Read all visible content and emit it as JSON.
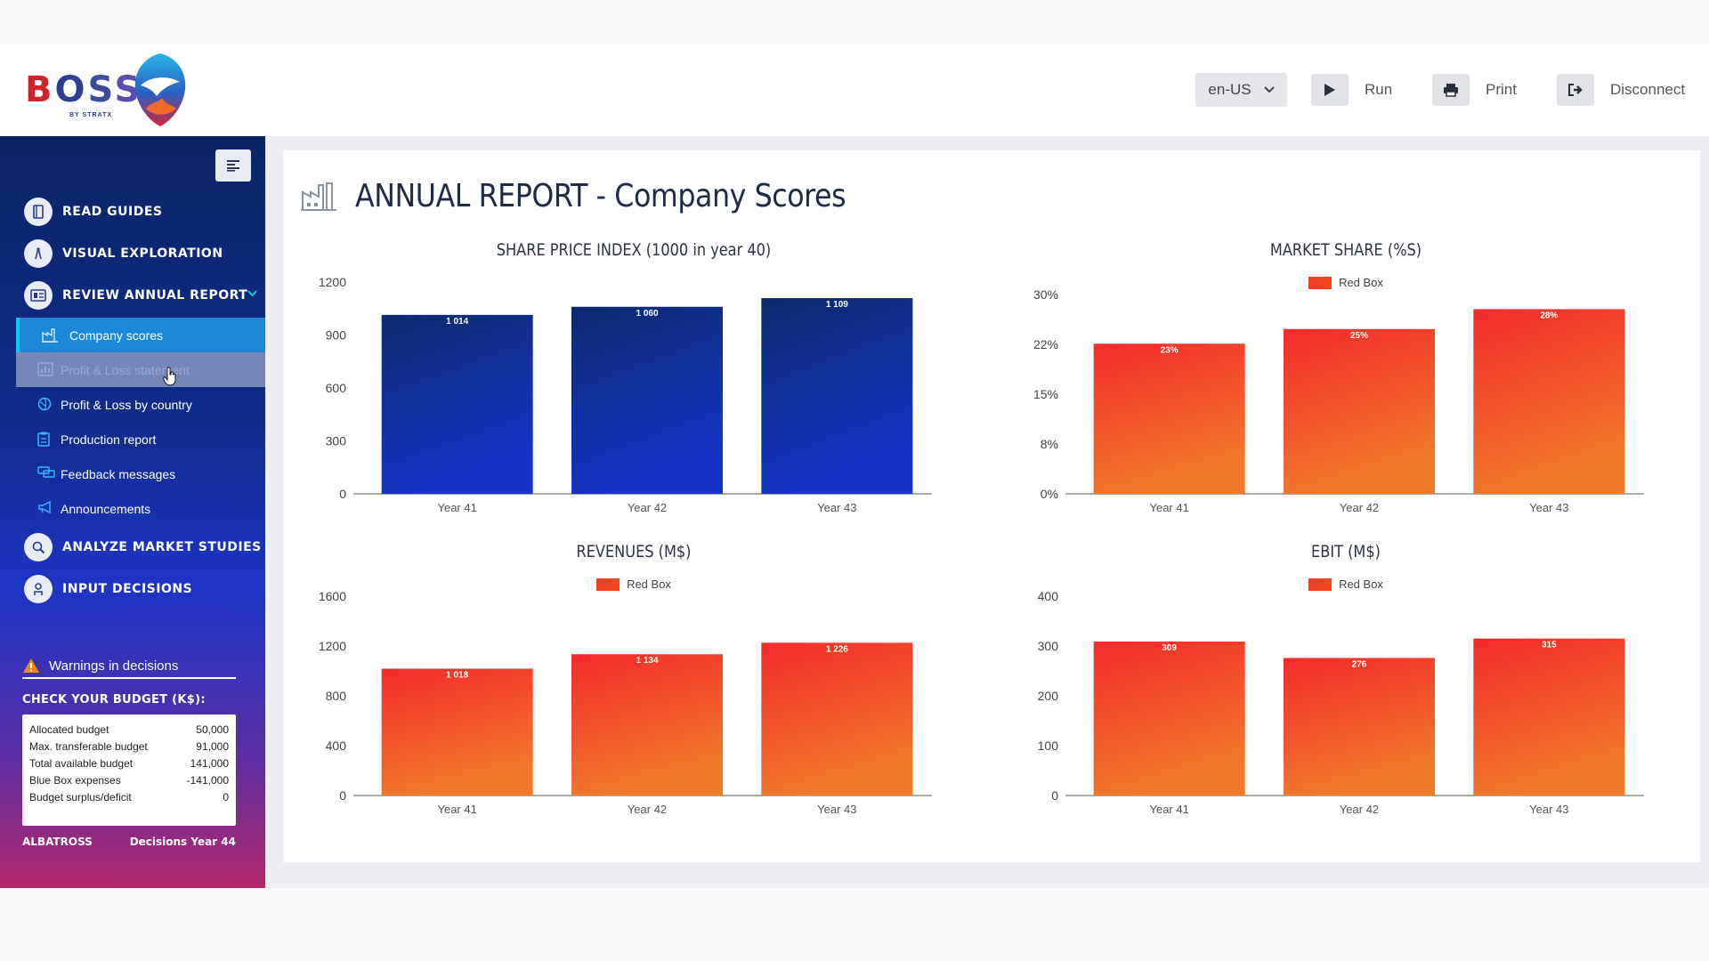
{
  "header": {
    "logo_text": [
      "B",
      "O",
      "S",
      "S"
    ],
    "logo_sub": "BY STRATX",
    "language": "en-US",
    "run_label": "Run",
    "print_label": "Print",
    "disconnect_label": "Disconnect"
  },
  "sidebar": {
    "nav": [
      {
        "label": "READ GUIDES",
        "icon": "book-icon"
      },
      {
        "label": "VISUAL EXPLORATION",
        "icon": "compass-icon"
      },
      {
        "label": "REVIEW ANNUAL REPORT",
        "icon": "report-icon"
      },
      {
        "label": "ANALYZE MARKET STUDIES",
        "icon": "magnifier-icon"
      },
      {
        "label": "INPUT DECISIONS",
        "icon": "decisions-icon"
      }
    ],
    "sub_items": [
      {
        "label": "Company scores",
        "icon": "factory-icon",
        "state": "active"
      },
      {
        "label": "Profit & Loss statement",
        "icon": "chart-icon",
        "state": "hover"
      },
      {
        "label": "Profit & Loss by country",
        "icon": "globe-icon",
        "state": "normal"
      },
      {
        "label": "Production report",
        "icon": "clipboard-icon",
        "state": "normal"
      },
      {
        "label": "Feedback messages",
        "icon": "message-icon",
        "state": "normal"
      },
      {
        "label": "Announcements",
        "icon": "megaphone-icon",
        "state": "normal"
      }
    ],
    "warnings_label": "Warnings in decisions",
    "budget_title": "CHECK YOUR BUDGET (K$):",
    "budget_rows": [
      {
        "label": "Allocated budget",
        "value": "50,000"
      },
      {
        "label": "Max. transferable budget",
        "value": "91,000"
      },
      {
        "label": "Total available budget",
        "value": "141,000"
      },
      {
        "label": "Blue Box expenses",
        "value": "-141,000"
      },
      {
        "label": "Budget surplus/deficit",
        "value": "0"
      }
    ],
    "company": "ALBATROSS",
    "decisions": "Decisions Year 44"
  },
  "main": {
    "page_title": "ANNUAL REPORT - Company Scores"
  },
  "colors": {
    "blue_bar_top": "#0c2a6e",
    "blue_bar_bottom": "#1535c8",
    "red_bar_top": "#f42a2a",
    "red_bar_bottom": "#f07a2a"
  },
  "chart_data": [
    {
      "id": "share-price",
      "type": "bar",
      "title": "SHARE PRICE INDEX (1000 in year 40)",
      "categories": [
        "Year 41",
        "Year 42",
        "Year 43"
      ],
      "values": [
        1014,
        1060,
        1109
      ],
      "data_labels": [
        "1 014",
        "1 060",
        "1 109"
      ],
      "yticks": [
        0,
        300,
        600,
        900,
        1200
      ],
      "ytick_labels": [
        "0",
        "300",
        "600",
        "900",
        "1200"
      ],
      "ylim": [
        0,
        1200
      ],
      "color": "blue",
      "legend": null
    },
    {
      "id": "market-share",
      "type": "bar",
      "title": "MARKET SHARE (%S)",
      "categories": [
        "Year 41",
        "Year 42",
        "Year 43"
      ],
      "values": [
        22.6,
        24.8,
        27.8
      ],
      "data_labels": [
        "23%",
        "25%",
        "28%"
      ],
      "yticks": [
        0,
        7.5,
        15,
        22.5,
        30
      ],
      "ytick_labels": [
        "0%",
        "8%",
        "15%",
        "22%",
        "30%"
      ],
      "ylim": [
        0,
        30
      ],
      "color": "red",
      "legend": "Red Box"
    },
    {
      "id": "revenues",
      "type": "bar",
      "title": "REVENUES (M$)",
      "categories": [
        "Year 41",
        "Year 42",
        "Year 43"
      ],
      "values": [
        1018,
        1134,
        1226
      ],
      "data_labels": [
        "1 018",
        "1 134",
        "1 226"
      ],
      "yticks": [
        0,
        400,
        800,
        1200,
        1600
      ],
      "ytick_labels": [
        "0",
        "400",
        "800",
        "1200",
        "1600"
      ],
      "ylim": [
        0,
        1600
      ],
      "color": "red",
      "legend": "Red Box"
    },
    {
      "id": "ebit",
      "type": "bar",
      "title": "EBIT (M$)",
      "categories": [
        "Year 41",
        "Year 42",
        "Year 43"
      ],
      "values": [
        309,
        276,
        315
      ],
      "data_labels": [
        "309",
        "276",
        "315"
      ],
      "yticks": [
        0,
        100,
        200,
        300,
        400
      ],
      "ytick_labels": [
        "0",
        "100",
        "200",
        "300",
        "400"
      ],
      "ylim": [
        0,
        400
      ],
      "color": "red",
      "legend": "Red Box"
    }
  ]
}
